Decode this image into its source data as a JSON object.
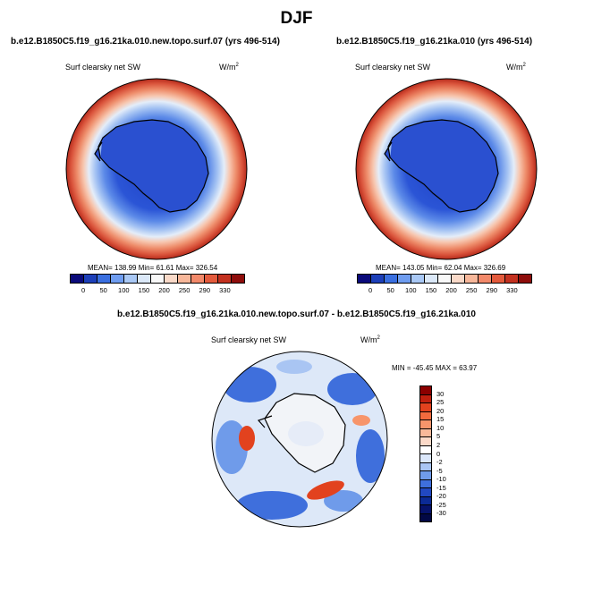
{
  "figure": {
    "season": "DJF",
    "diff_title": "b.e12.B1850C5.f19_g16.21ka.010.new.topo.surf.07 - b.e12.B1850C5.f19_g16.21ka.010"
  },
  "panels": [
    {
      "title": "b.e12.B1850C5.f19_g16.21ka.010.new.topo.surf.07 (yrs 496-514)",
      "variable": "Surf clearsky net SW",
      "units_base": "W/m",
      "units_exp": "2",
      "stats": "MEAN= 138.99  Min=  61.61  Max= 326.54"
    },
    {
      "title": "b.e12.B1850C5.f19_g16.21ka.010 (yrs 496-514)",
      "variable": "Surf clearsky net SW",
      "units_base": "W/m",
      "units_exp": "2",
      "stats": "MEAN= 143.05  Min=  62.04  Max= 326.69"
    },
    {
      "title": "",
      "variable": "Surf clearsky net SW",
      "units_base": "W/m",
      "units_exp": "2",
      "stats": "MIN = -45.45 MAX =  63.97"
    }
  ],
  "colorbars": {
    "abs_levels": [
      "0",
      "50",
      "100",
      "150",
      "200",
      "250",
      "290",
      "330"
    ],
    "abs_colors": [
      "#0a0a7a",
      "#1c3fb8",
      "#3a6fe0",
      "#6f9df0",
      "#a9c8f5",
      "#dbe8f8",
      "#f8f8f8",
      "#f9d9c8",
      "#f7b79a",
      "#f2896a",
      "#e35a3c",
      "#c3311f",
      "#8e0d0b"
    ],
    "diff_levels": [
      "30",
      "25",
      "20",
      "15",
      "10",
      "5",
      "2",
      "0",
      "-2",
      "-5",
      "-10",
      "-15",
      "-20",
      "-25",
      "-30"
    ],
    "diff_colors": [
      "#8b0000",
      "#c0200f",
      "#e2421e",
      "#f36b3e",
      "#f7956b",
      "#f9b99a",
      "#fbd9c8",
      "#ffffff",
      "#dbe7fa",
      "#a9c5f3",
      "#6f9bea",
      "#3f6fdc",
      "#2148c1",
      "#0b2a95",
      "#06126a",
      "#020845"
    ]
  }
}
